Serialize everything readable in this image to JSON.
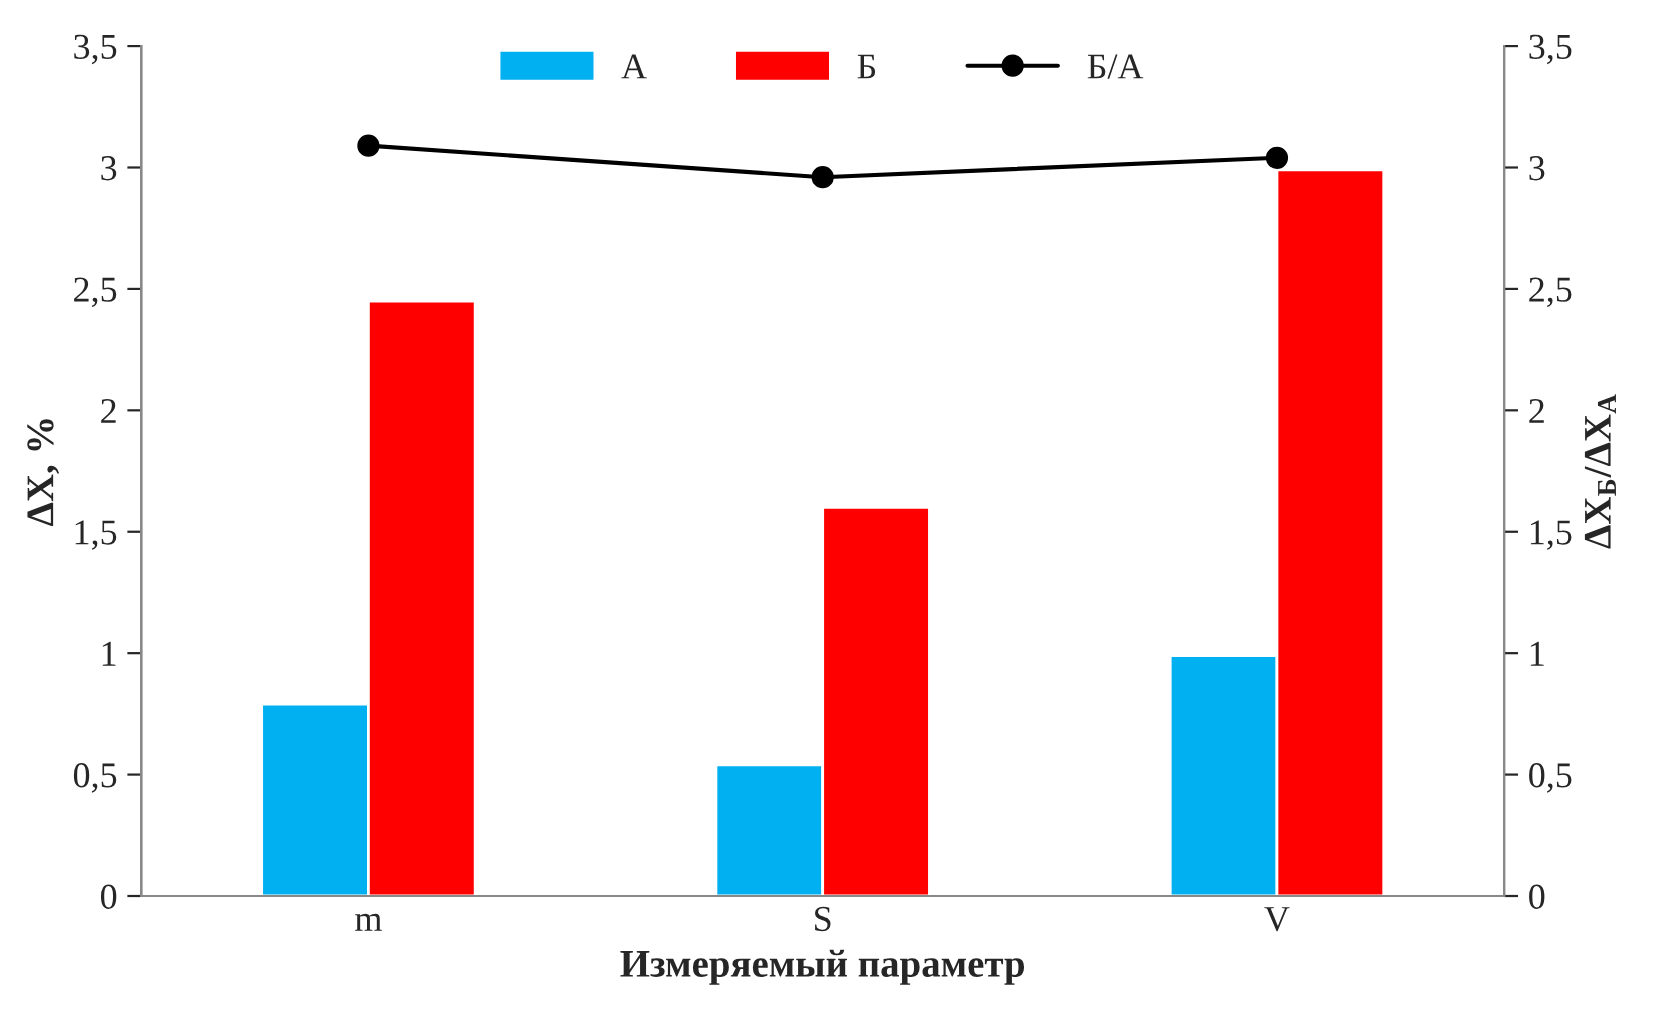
{
  "chart_data": {
    "type": "bar",
    "xlabel": "Измеряемый параметр",
    "ylabel": "ΔX, %",
    "y2label": "ΔX$_{Б}$/ΔX$_{А}$",
    "categories": [
      "m",
      "S",
      "V"
    ],
    "series": [
      {
        "name": "А",
        "color": "#00b0f0",
        "values": [
          0.79,
          0.54,
          0.99
        ]
      },
      {
        "name": "Б",
        "color": "#ff0000",
        "values": [
          2.45,
          1.6,
          2.99
        ]
      },
      {
        "name": "Б/А",
        "type": "line",
        "axis": "y2",
        "color": "#000000",
        "marker": "circle",
        "values": [
          3.09,
          2.96,
          3.04
        ]
      }
    ],
    "ylim": [
      0,
      3.5
    ],
    "yticks": [
      0,
      {
        "value": 0.5,
        "label": "0,5"
      },
      1,
      {
        "value": 1.5,
        "label": "1,5"
      },
      2,
      {
        "value": 2.5,
        "label": "2,5"
      },
      3,
      {
        "value": 3.5,
        "label": "3,5"
      }
    ],
    "y2lim": [
      0,
      3.5
    ],
    "y2ticks": [
      0,
      {
        "value": 0.5,
        "label": "0,5"
      },
      1,
      {
        "value": 1.5,
        "label": "1,5"
      },
      2,
      {
        "value": 2.5,
        "label": "2,5"
      },
      3,
      {
        "value": 3.5,
        "label": "3,5"
      }
    ],
    "grid": false,
    "legend": "top"
  }
}
